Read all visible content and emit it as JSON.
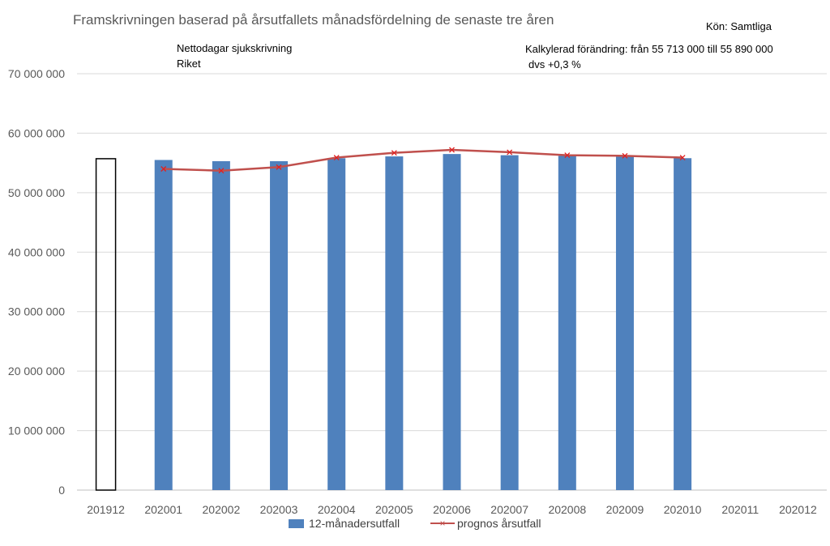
{
  "chart_data": {
    "type": "bar",
    "title": "Framskrivningen baserad på årsutfallets månadsfördelning de senaste tre åren",
    "annotations": {
      "gender": "Kön: Samtliga",
      "measure": "Nettodagar sjukskrivning",
      "region": "Riket",
      "change_line1": "Kalkylerad förändring: från 55 713 000 till 55 890 000",
      "change_line2": "dvs +0,3 %"
    },
    "categories": [
      "201912",
      "202001",
      "202002",
      "202003",
      "202004",
      "202005",
      "202006",
      "202007",
      "202008",
      "202009",
      "202010",
      "202011",
      "202012"
    ],
    "ylim": [
      0,
      70000000
    ],
    "yticks": [
      0,
      10000000,
      20000000,
      30000000,
      40000000,
      50000000,
      60000000,
      70000000
    ],
    "ytick_labels": [
      "0",
      "10 000 000",
      "20 000 000",
      "30 000 000",
      "40 000 000",
      "50 000 000",
      "60 000 000",
      "70 000 000"
    ],
    "highlight_bar": {
      "category": "201912",
      "value": 55713000,
      "style": "outline"
    },
    "series": [
      {
        "name": "12-månadersutfall",
        "type": "bar",
        "color": "#4f81bd",
        "values": [
          null,
          55500000,
          55300000,
          55300000,
          55800000,
          56100000,
          56500000,
          56300000,
          56200000,
          56100000,
          55800000,
          null,
          null
        ]
      },
      {
        "name": "prognos årsutfall",
        "type": "line",
        "color": "#c0504d",
        "values": [
          null,
          54000000,
          53700000,
          54300000,
          55900000,
          56700000,
          57200000,
          56800000,
          56300000,
          56200000,
          55900000,
          null,
          null
        ]
      }
    ],
    "legend_position": "bottom"
  }
}
